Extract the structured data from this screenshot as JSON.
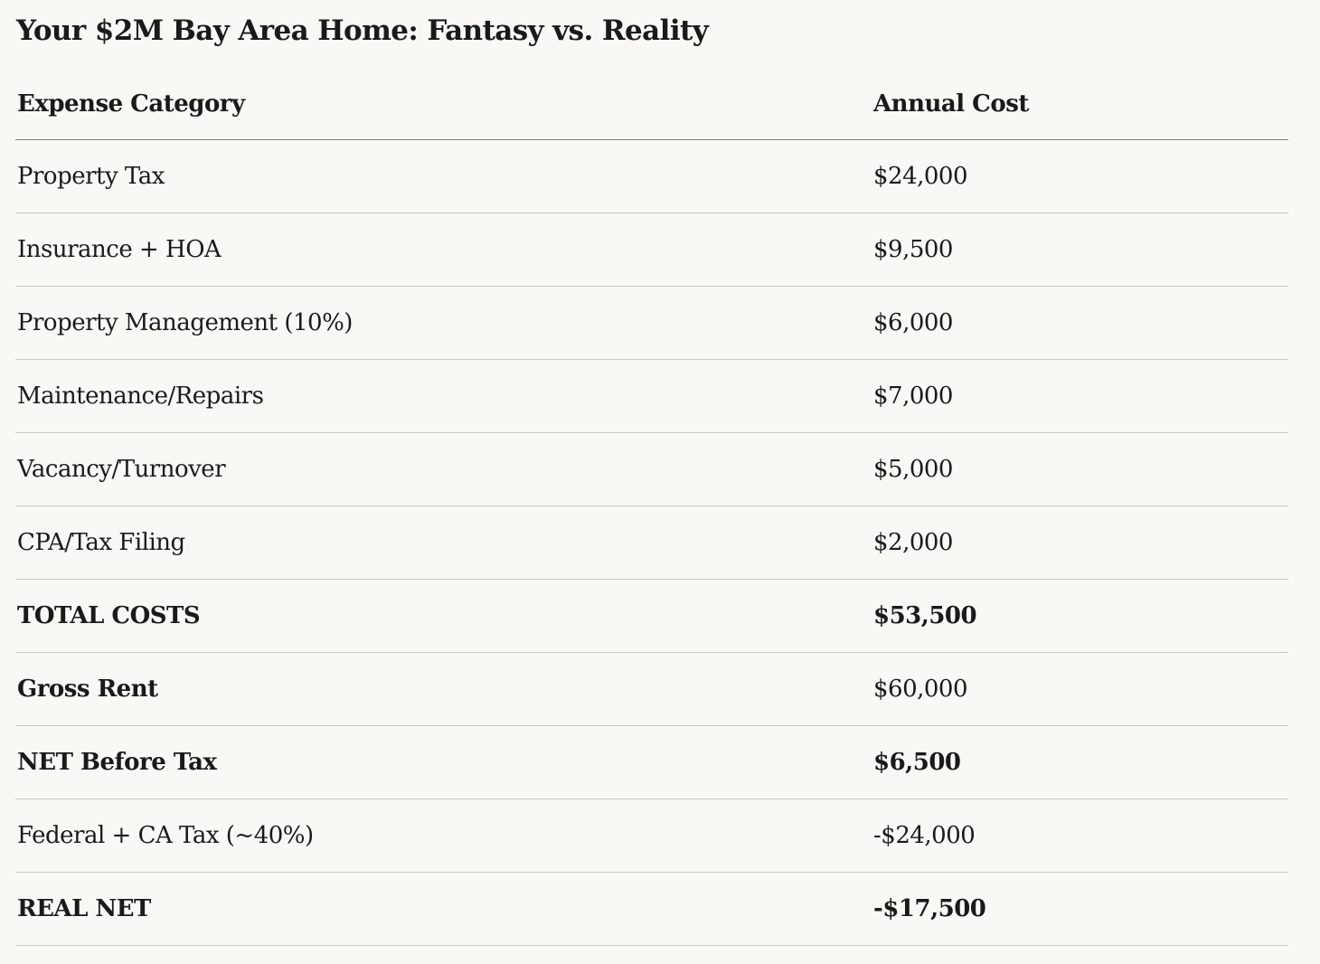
{
  "title": "Your $2M Bay Area Home: Fantasy vs. Reality",
  "table": {
    "headers": [
      "Expense Category",
      "Annual Cost"
    ],
    "rows": [
      {
        "category": "Property Tax",
        "cost": "$24,000",
        "strong": false
      },
      {
        "category": "Insurance + HOA",
        "cost": "$9,500",
        "strong": false
      },
      {
        "category": "Property Management (10%)",
        "cost": "$6,000",
        "strong": false
      },
      {
        "category": "Maintenance/Repairs",
        "cost": "$7,000",
        "strong": false
      },
      {
        "category": "Vacancy/Turnover",
        "cost": "$5,000",
        "strong": false
      },
      {
        "category": "CPA/Tax Filing",
        "cost": "$2,000",
        "strong": false
      },
      {
        "category": "TOTAL COSTS",
        "cost": "$53,500",
        "strong": true
      },
      {
        "category": "Gross Rent",
        "cost": "$60,000",
        "strong": "label"
      },
      {
        "category": "NET Before Tax",
        "cost": "$6,500",
        "strong": true
      },
      {
        "category": "Federal + CA Tax (~40%)",
        "cost": "-$24,000",
        "strong": false
      },
      {
        "category": "REAL NET",
        "cost": "-$17,500",
        "strong": true
      }
    ]
  }
}
